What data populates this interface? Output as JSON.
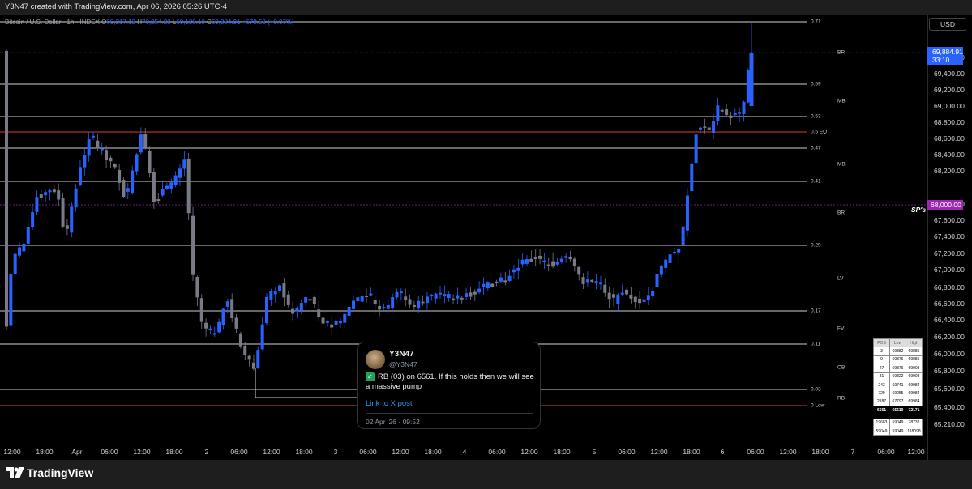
{
  "header": {
    "credit": "Y3N47 created with TradingView.com, Apr 06, 2026 05:26 UTC-4"
  },
  "legend": {
    "symbol": "Bitcoin / U.S. Dollar · 1h · INDEX",
    "open_label": "O",
    "open": "69,217.13",
    "high_label": "H",
    "high": "70,254.23",
    "low_label": "L",
    "low": "69,138.10",
    "close_label": "C",
    "close": "69,884.91",
    "change": "+678.58 (+0.97%)"
  },
  "currency": "USD",
  "price_axis": {
    "labels": [
      "70,000.00",
      "69,600.00",
      "69,400.00",
      "69,200.00",
      "69,000.00",
      "68,800.00",
      "68,600.00",
      "68,400.00",
      "68,200.00",
      "67,800.00",
      "67,600.00",
      "67,400.00",
      "67,200.00",
      "67,000.00",
      "66,800.00",
      "66,600.00",
      "66,400.00",
      "66,200.00",
      "66,000.00",
      "65,800.00",
      "65,600.00",
      "65,400.00",
      "65,210.00"
    ],
    "last_price": "69,884.91",
    "countdown": "33:10",
    "sp_price": "68,000.00",
    "sp_label": "SP's"
  },
  "fib_levels": [
    "0.71",
    "0.59",
    "0.53",
    "0.5 EQ",
    "0.47",
    "0.41",
    "0.29",
    "0.17",
    "0.11",
    "0.03",
    "0 Low"
  ],
  "zones": [
    "BR",
    "MB",
    "MB",
    "BR",
    "LV",
    "FV",
    "OB",
    "RB"
  ],
  "time_axis": [
    "12:00",
    "18:00",
    "Apr",
    "06:00",
    "12:00",
    "18:00",
    "2",
    "06:00",
    "12:00",
    "18:00",
    "3",
    "06:00",
    "12:00",
    "18:00",
    "4",
    "06:00",
    "12:00",
    "18:00",
    "5",
    "06:00",
    "12:00",
    "18:00",
    "6",
    "06:00",
    "12:00",
    "18:00",
    "7",
    "06:00",
    "12:00"
  ],
  "tweet": {
    "name": "Y3N47",
    "handle": "@Y3N47",
    "body": "RB (03) on 6561. If this holds then we will see a massive pump",
    "link": "Link to X post",
    "date": "02 Apr '26 · 09:52"
  },
  "position_table": {
    "headers": [
      "POS",
      "Low",
      "High"
    ],
    "rows": [
      [
        "3",
        "69882",
        "69885"
      ],
      [
        "9",
        "69876",
        "69885"
      ],
      [
        "27",
        "69876",
        "69903"
      ],
      [
        "81",
        "69822",
        "69903"
      ],
      [
        "243",
        "69741",
        "69984"
      ],
      [
        "729",
        "69255",
        "69984"
      ],
      [
        "2187",
        "67797",
        "69984"
      ]
    ],
    "summary": [
      "6561",
      "65610",
      "72171"
    ],
    "extra": [
      [
        "19683",
        "59049",
        "78732"
      ],
      [
        "59049",
        "59049",
        "118098"
      ]
    ]
  },
  "branding": {
    "name": "TradingView"
  },
  "colors": {
    "up": "#2962ff",
    "down": "#787b86",
    "accent": "#2962ff",
    "sp": "#9c27b0",
    "red_line": "#e53935"
  }
}
